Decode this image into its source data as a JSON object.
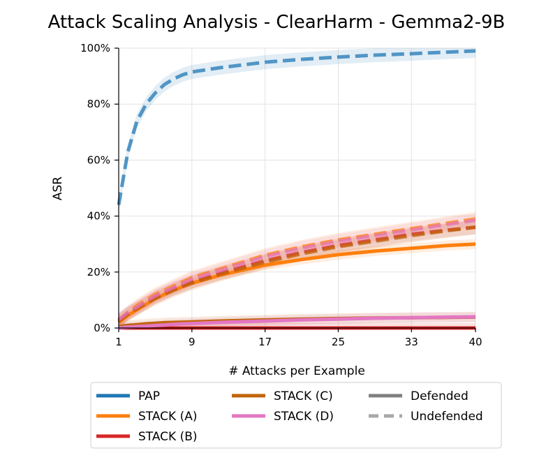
{
  "chart_data": {
    "type": "line",
    "title": "Attack Scaling Analysis - ClearHarm - Gemma2-9B",
    "xlabel": "# Attacks per Example",
    "ylabel": "ASR",
    "xlim": [
      1,
      40
    ],
    "ylim": [
      0,
      100
    ],
    "x_ticks": [
      1,
      9,
      17,
      25,
      33,
      40
    ],
    "y_ticks": [
      0,
      20,
      40,
      60,
      80,
      100
    ],
    "y_tick_labels": [
      "0%",
      "20%",
      "40%",
      "60%",
      "80%",
      "100%"
    ],
    "grid": true,
    "x": [
      1,
      2,
      3,
      4,
      5,
      6,
      7,
      8,
      9,
      12,
      17,
      21,
      25,
      29,
      33,
      37,
      40
    ],
    "series": [
      {
        "name": "PAP",
        "variant": "Undefended",
        "color": "#1f77b4",
        "dash": true,
        "values": [
          44,
          63,
          74,
          80,
          84,
          87,
          89,
          90.5,
          91.5,
          93,
          95,
          96,
          96.8,
          97.5,
          98,
          98.6,
          99
        ]
      },
      {
        "name": "STACK (A)",
        "variant": "Defended",
        "color": "#ff7f0e",
        "dash": false,
        "values": [
          2,
          4.5,
          6.5,
          8.5,
          10.5,
          12,
          13.5,
          14.8,
          16,
          18.8,
          22.5,
          24.5,
          26.2,
          27.5,
          28.5,
          29.5,
          30
        ]
      },
      {
        "name": "STACK (A)",
        "variant": "Undefended",
        "color": "#ff7f0e",
        "dash": true,
        "values": [
          3,
          5.5,
          8,
          10,
          12,
          13.5,
          15,
          16.5,
          18,
          21,
          26,
          29,
          31.5,
          33.5,
          35.5,
          37.5,
          39
        ]
      },
      {
        "name": "STACK (B)",
        "variant": "Defended",
        "color": "#d62728",
        "dash": false,
        "values": [
          0,
          0,
          0,
          0,
          0,
          0,
          0,
          0,
          0,
          0,
          0,
          0,
          0,
          0,
          0,
          0,
          0
        ]
      },
      {
        "name": "STACK (B)",
        "variant": "Undefended",
        "color": "#d62728",
        "dash": true,
        "values": [
          2.5,
          5,
          7,
          9,
          11,
          12.5,
          14,
          15.2,
          16.5,
          19.5,
          24,
          27,
          29.5,
          31.5,
          33.5,
          35,
          36
        ]
      },
      {
        "name": "STACK (C)",
        "variant": "Defended",
        "color": "#c0650a",
        "dash": false,
        "values": [
          0.5,
          0.9,
          1.2,
          1.5,
          1.7,
          1.9,
          2.0,
          2.1,
          2.2,
          2.5,
          2.9,
          3.2,
          3.4,
          3.6,
          3.7,
          3.8,
          3.9
        ]
      },
      {
        "name": "STACK (C)",
        "variant": "Undefended",
        "color": "#c0650a",
        "dash": true,
        "values": [
          2.5,
          5,
          7,
          8.8,
          10.5,
          12,
          13.5,
          14.8,
          16,
          19,
          23.5,
          26.5,
          29,
          31,
          33,
          34.8,
          36
        ]
      },
      {
        "name": "STACK (D)",
        "variant": "Defended",
        "color": "#e377c2",
        "dash": false,
        "values": [
          0,
          0.3,
          0.5,
          0.7,
          0.9,
          1.1,
          1.3,
          1.5,
          1.6,
          2.0,
          2.5,
          2.9,
          3.2,
          3.5,
          3.7,
          3.9,
          4
        ]
      },
      {
        "name": "STACK (D)",
        "variant": "Undefended",
        "color": "#e377c2",
        "dash": true,
        "values": [
          3,
          5.5,
          7.5,
          9.5,
          11.5,
          13,
          14.5,
          16,
          17.5,
          20.5,
          25.5,
          28.5,
          31,
          33,
          35,
          37,
          38.5
        ]
      }
    ],
    "legend": {
      "placement": "below",
      "entries": [
        {
          "label": "PAP",
          "color": "#1f77b4",
          "style": "solid"
        },
        {
          "label": "STACK (A)",
          "color": "#ff7f0e",
          "style": "solid"
        },
        {
          "label": "STACK (B)",
          "color": "#d62728",
          "style": "solid"
        },
        {
          "label": "STACK (C)",
          "color": "#c0650a",
          "style": "solid"
        },
        {
          "label": "STACK (D)",
          "color": "#e377c2",
          "style": "solid"
        },
        {
          "label": "Defended",
          "color": "#808080",
          "style": "solid"
        },
        {
          "label": "Undefended",
          "color": "#a8a8a8",
          "style": "dashed"
        }
      ]
    }
  }
}
